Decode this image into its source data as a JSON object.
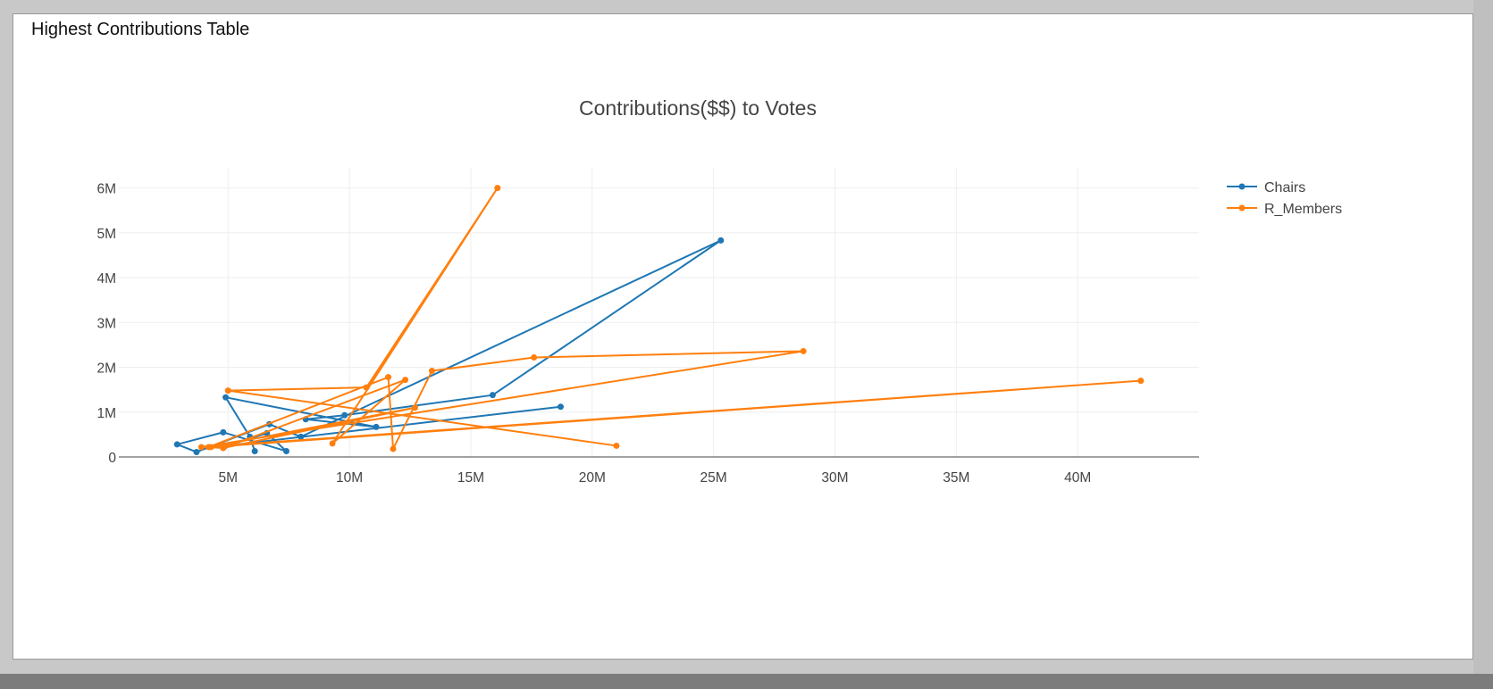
{
  "panel": {
    "title": "Highest Contributions Table"
  },
  "chart_data": {
    "type": "line",
    "title": "Contributions($$) to Votes",
    "xlabel": "",
    "ylabel": "",
    "xlim": [
      0.5,
      45
    ],
    "ylim": [
      0,
      6.45
    ],
    "x_ticks": [
      5,
      10,
      15,
      20,
      25,
      30,
      35,
      40
    ],
    "x_tick_labels": [
      "5M",
      "10M",
      "15M",
      "20M",
      "25M",
      "30M",
      "35M",
      "40M"
    ],
    "y_ticks": [
      0,
      1,
      2,
      3,
      4,
      5,
      6
    ],
    "y_tick_labels": [
      "0",
      "1M",
      "2M",
      "3M",
      "4M",
      "5M",
      "6M"
    ],
    "grid": true,
    "legend": "top-right",
    "units": "millions (M)",
    "series": [
      {
        "name": "Chairs",
        "color": "#1f77b4",
        "x": [
          18.7,
          4.9,
          6.6,
          7.4,
          4.8,
          2.9,
          3.7,
          6.7,
          8.0,
          25.3,
          15.9,
          9.8,
          8.2,
          11.1,
          4.9,
          5.9,
          6.1
        ],
        "y": [
          1.12,
          0.25,
          0.53,
          0.13,
          0.55,
          0.28,
          0.11,
          0.73,
          0.45,
          4.83,
          1.38,
          0.93,
          0.84,
          0.67,
          1.33,
          0.45,
          0.13
        ]
      },
      {
        "name": "R_Members",
        "color": "#ff7f0e",
        "x": [
          21.0,
          5.0,
          10.7,
          16.1,
          9.3,
          12.3,
          4.8,
          4.2,
          11.6,
          11.8,
          13.4,
          17.6,
          28.7,
          3.9,
          42.6,
          4.3,
          12.7,
          4.8
        ],
        "y": [
          0.25,
          1.48,
          1.55,
          6.0,
          0.3,
          1.72,
          0.2,
          0.22,
          1.78,
          0.18,
          1.92,
          2.22,
          2.36,
          0.22,
          1.7,
          0.22,
          1.1,
          0.2
        ]
      }
    ]
  }
}
